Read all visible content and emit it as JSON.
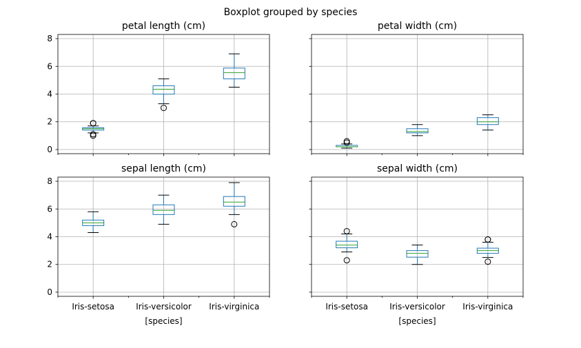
{
  "figure": {
    "title": "Boxplot grouped by species"
  },
  "chart_data": [
    {
      "type": "box",
      "title": "petal length (cm)",
      "categories": [
        "Iris-setosa",
        "Iris-versicolor",
        "Iris-virginica"
      ],
      "xlabel": "",
      "ylim": [
        -0.3,
        8.3
      ],
      "yticks": [
        0,
        2,
        4,
        6,
        8
      ],
      "grid": true,
      "boxes": [
        {
          "whislo": 1.2,
          "q1": 1.4,
          "med": 1.5,
          "q3": 1.575,
          "whishi": 1.7,
          "fliers": [
            1.0,
            1.1,
            1.9,
            1.9
          ]
        },
        {
          "whislo": 3.3,
          "q1": 4.0,
          "med": 4.35,
          "q3": 4.6,
          "whishi": 5.1,
          "fliers": [
            3.0
          ]
        },
        {
          "whislo": 4.5,
          "q1": 5.1,
          "med": 5.55,
          "q3": 5.875,
          "whishi": 6.9,
          "fliers": []
        }
      ]
    },
    {
      "type": "box",
      "title": "petal width (cm)",
      "categories": [
        "Iris-setosa",
        "Iris-versicolor",
        "Iris-virginica"
      ],
      "xlabel": "",
      "ylim": [
        -0.3,
        8.3
      ],
      "yticks": [
        0,
        2,
        4,
        6,
        8
      ],
      "grid": true,
      "boxes": [
        {
          "whislo": 0.1,
          "q1": 0.2,
          "med": 0.2,
          "q3": 0.3,
          "whishi": 0.4,
          "fliers": [
            0.5,
            0.6
          ]
        },
        {
          "whislo": 1.0,
          "q1": 1.2,
          "med": 1.3,
          "q3": 1.5,
          "whishi": 1.8,
          "fliers": []
        },
        {
          "whislo": 1.4,
          "q1": 1.8,
          "med": 2.0,
          "q3": 2.3,
          "whishi": 2.5,
          "fliers": []
        }
      ]
    },
    {
      "type": "box",
      "title": "sepal length (cm)",
      "categories": [
        "Iris-setosa",
        "Iris-versicolor",
        "Iris-virginica"
      ],
      "xlabel": "[species]",
      "ylim": [
        -0.3,
        8.3
      ],
      "yticks": [
        0,
        2,
        4,
        6,
        8
      ],
      "grid": true,
      "boxes": [
        {
          "whislo": 4.3,
          "q1": 4.8,
          "med": 5.0,
          "q3": 5.2,
          "whishi": 5.8,
          "fliers": []
        },
        {
          "whislo": 4.9,
          "q1": 5.6,
          "med": 5.9,
          "q3": 6.3,
          "whishi": 7.0,
          "fliers": []
        },
        {
          "whislo": 5.6,
          "q1": 6.2,
          "med": 6.5,
          "q3": 6.9,
          "whishi": 7.9,
          "fliers": [
            4.9
          ]
        }
      ]
    },
    {
      "type": "box",
      "title": "sepal width (cm)",
      "categories": [
        "Iris-setosa",
        "Iris-versicolor",
        "Iris-virginica"
      ],
      "xlabel": "[species]",
      "ylim": [
        -0.3,
        8.3
      ],
      "yticks": [
        0,
        2,
        4,
        6,
        8
      ],
      "grid": true,
      "boxes": [
        {
          "whislo": 2.9,
          "q1": 3.2,
          "med": 3.4,
          "q3": 3.675,
          "whishi": 4.2,
          "fliers": [
            2.3,
            4.4
          ]
        },
        {
          "whislo": 2.0,
          "q1": 2.525,
          "med": 2.8,
          "q3": 3.0,
          "whishi": 3.4,
          "fliers": []
        },
        {
          "whislo": 2.5,
          "q1": 2.8,
          "med": 3.0,
          "q3": 3.175,
          "whishi": 3.6,
          "fliers": [
            2.2,
            3.8,
            3.8
          ]
        }
      ]
    }
  ]
}
